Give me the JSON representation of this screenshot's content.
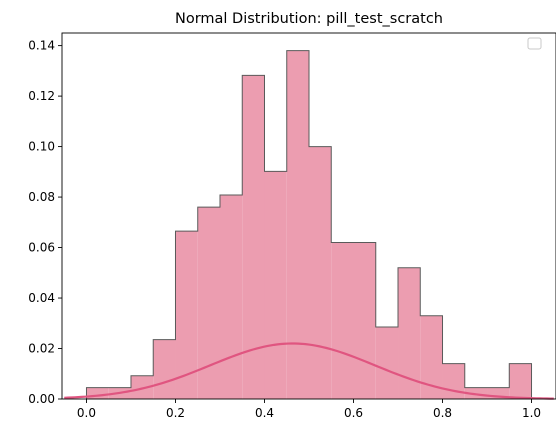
{
  "chart_data": {
    "type": "histogram",
    "title": "Normal Distribution: pill_test_scratch",
    "xlabel": "",
    "ylabel": "",
    "xlim": [
      -0.055,
      1.055
    ],
    "ylim": [
      0,
      0.145
    ],
    "x_ticks": [
      0.0,
      0.2,
      0.4,
      0.6,
      0.8,
      1.0
    ],
    "x_tick_labels": [
      "0.0",
      "0.2",
      "0.4",
      "0.6",
      "0.8",
      "1.0"
    ],
    "y_ticks": [
      0.0,
      0.02,
      0.04,
      0.06,
      0.08,
      0.1,
      0.12,
      0.14
    ],
    "y_tick_labels": [
      "0.00",
      "0.02",
      "0.04",
      "0.06",
      "0.08",
      "0.10",
      "0.12",
      "0.14"
    ],
    "grid": false,
    "legend": {
      "placement": "top-right",
      "entries": []
    },
    "bins": [
      {
        "x0": 0.0,
        "x1": 0.05,
        "value": 0.0045
      },
      {
        "x0": 0.05,
        "x1": 0.1,
        "value": 0.0045
      },
      {
        "x0": 0.1,
        "x1": 0.15,
        "value": 0.0092
      },
      {
        "x0": 0.15,
        "x1": 0.2,
        "value": 0.0235
      },
      {
        "x0": 0.2,
        "x1": 0.25,
        "value": 0.0665
      },
      {
        "x0": 0.25,
        "x1": 0.3,
        "value": 0.076
      },
      {
        "x0": 0.3,
        "x1": 0.35,
        "value": 0.0808
      },
      {
        "x0": 0.35,
        "x1": 0.4,
        "value": 0.1282
      },
      {
        "x0": 0.4,
        "x1": 0.45,
        "value": 0.0902
      },
      {
        "x0": 0.45,
        "x1": 0.5,
        "value": 0.138
      },
      {
        "x0": 0.5,
        "x1": 0.55,
        "value": 0.1
      },
      {
        "x0": 0.55,
        "x1": 0.6,
        "value": 0.062
      },
      {
        "x0": 0.6,
        "x1": 0.65,
        "value": 0.062
      },
      {
        "x0": 0.65,
        "x1": 0.7,
        "value": 0.0285
      },
      {
        "x0": 0.7,
        "x1": 0.75,
        "value": 0.052
      },
      {
        "x0": 0.75,
        "x1": 0.8,
        "value": 0.033
      },
      {
        "x0": 0.8,
        "x1": 0.85,
        "value": 0.014
      },
      {
        "x0": 0.85,
        "x1": 0.9,
        "value": 0.0045
      },
      {
        "x0": 0.9,
        "x1": 0.95,
        "value": 0.0045
      },
      {
        "x0": 0.95,
        "x1": 1.0,
        "value": 0.014
      }
    ],
    "curve": {
      "kind": "normal-pdf-scaled",
      "mean": 0.463,
      "std": 0.185,
      "peak": 0.022,
      "x_range": [
        -0.05,
        1.05
      ]
    },
    "colors": {
      "bar_fill": "#ec9db0",
      "bar_edge": "#5a5a5a",
      "curve": "#e05580"
    }
  }
}
